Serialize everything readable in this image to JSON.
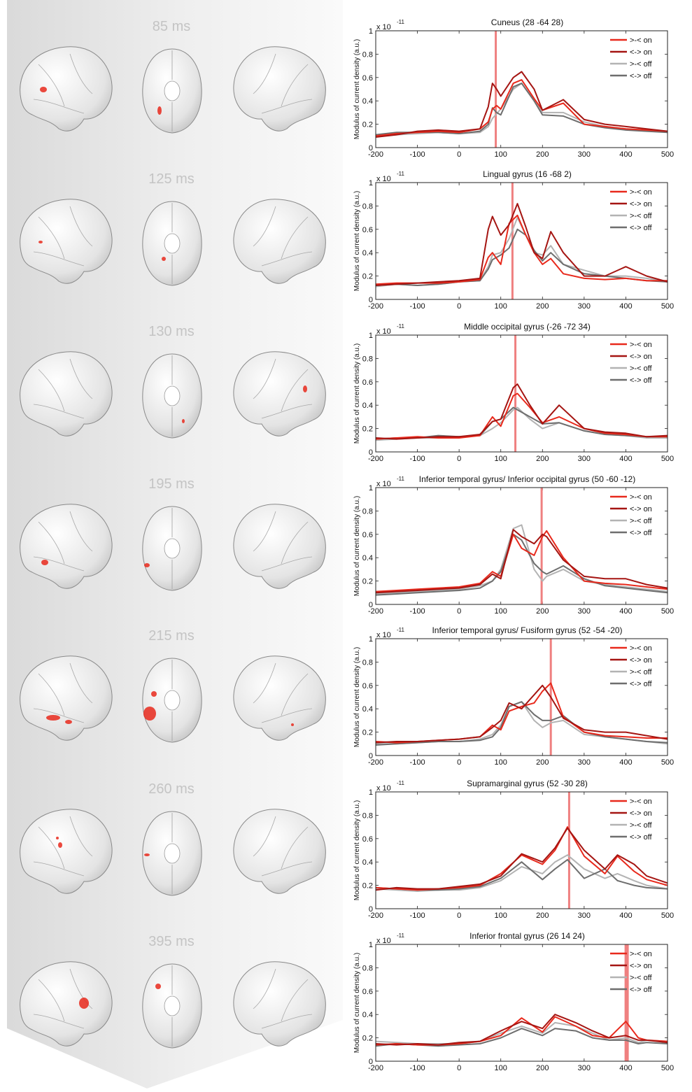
{
  "latencies": [
    "85 ms",
    "125 ms",
    "130 ms",
    "195 ms",
    "215 ms",
    "260 ms",
    "395 ms"
  ],
  "shared": {
    "ylabel": "Modulus of current density (a.u.)",
    "scale_label": "x 10",
    "scale_exponent": "-11",
    "xticks": [
      -200,
      -100,
      0,
      100,
      200,
      300,
      400,
      500
    ],
    "yticks": [
      0,
      0.2,
      0.4,
      0.6,
      0.8,
      1
    ],
    "xlim": [
      -200,
      500
    ],
    "ylim": [
      0,
      1
    ],
    "legend_labels": [
      ">-< on",
      "<-> on",
      ">-< off",
      "<-> off"
    ],
    "colors": [
      "#e8291c",
      "#a51512",
      "#b3b3b3",
      "#6e6e6e"
    ],
    "marker_color": "#ef8080"
  },
  "chart_data": [
    {
      "type": "line",
      "title": "Cuneus (28 -64 28)",
      "marker": 88,
      "x": [
        -200,
        -150,
        -100,
        -50,
        0,
        50,
        70,
        80,
        90,
        100,
        130,
        150,
        180,
        200,
        250,
        300,
        350,
        400,
        450,
        500
      ],
      "series": [
        {
          "name": ">-< on",
          "values": [
            0.1,
            0.12,
            0.13,
            0.14,
            0.13,
            0.16,
            0.22,
            0.33,
            0.36,
            0.33,
            0.55,
            0.58,
            0.42,
            0.32,
            0.38,
            0.2,
            0.18,
            0.16,
            0.15,
            0.14
          ]
        },
        {
          "name": "<-> on",
          "values": [
            0.09,
            0.11,
            0.14,
            0.15,
            0.14,
            0.16,
            0.35,
            0.55,
            0.5,
            0.44,
            0.6,
            0.65,
            0.5,
            0.32,
            0.41,
            0.24,
            0.2,
            0.18,
            0.16,
            0.14
          ]
        },
        {
          "name": ">-< off",
          "values": [
            0.1,
            0.11,
            0.12,
            0.13,
            0.12,
            0.13,
            0.18,
            0.25,
            0.29,
            0.33,
            0.5,
            0.55,
            0.4,
            0.3,
            0.3,
            0.22,
            0.18,
            0.16,
            0.15,
            0.13
          ]
        },
        {
          "name": "<-> off",
          "values": [
            0.11,
            0.13,
            0.13,
            0.13,
            0.12,
            0.14,
            0.2,
            0.34,
            0.3,
            0.28,
            0.52,
            0.55,
            0.4,
            0.28,
            0.27,
            0.2,
            0.17,
            0.15,
            0.14,
            0.13
          ]
        }
      ]
    },
    {
      "type": "line",
      "title": "Lingual gyrus (16 -68  2)",
      "marker": 128,
      "x": [
        -200,
        -150,
        -100,
        -50,
        0,
        50,
        70,
        80,
        100,
        120,
        140,
        160,
        180,
        200,
        220,
        250,
        300,
        350,
        400,
        450,
        500
      ],
      "series": [
        {
          "name": ">-< on",
          "values": [
            0.13,
            0.14,
            0.14,
            0.14,
            0.15,
            0.17,
            0.36,
            0.4,
            0.3,
            0.65,
            0.72,
            0.55,
            0.4,
            0.3,
            0.35,
            0.22,
            0.18,
            0.17,
            0.18,
            0.16,
            0.16
          ]
        },
        {
          "name": "<-> on",
          "values": [
            0.12,
            0.13,
            0.14,
            0.15,
            0.16,
            0.18,
            0.6,
            0.71,
            0.55,
            0.64,
            0.82,
            0.62,
            0.4,
            0.35,
            0.58,
            0.4,
            0.2,
            0.2,
            0.28,
            0.2,
            0.15
          ]
        },
        {
          "name": ">-< off",
          "values": [
            0.11,
            0.13,
            0.12,
            0.13,
            0.15,
            0.16,
            0.28,
            0.38,
            0.4,
            0.52,
            0.7,
            0.55,
            0.4,
            0.38,
            0.46,
            0.3,
            0.25,
            0.2,
            0.2,
            0.18,
            0.15
          ]
        },
        {
          "name": "<-> off",
          "values": [
            0.12,
            0.13,
            0.12,
            0.13,
            0.15,
            0.16,
            0.26,
            0.34,
            0.38,
            0.44,
            0.6,
            0.55,
            0.42,
            0.33,
            0.4,
            0.3,
            0.22,
            0.2,
            0.18,
            0.16,
            0.15
          ]
        }
      ]
    },
    {
      "type": "line",
      "title": "Middle occipital gyrus (-26 -72  34)",
      "marker": 135,
      "x": [
        -200,
        -150,
        -100,
        -50,
        0,
        50,
        80,
        100,
        130,
        140,
        170,
        200,
        240,
        300,
        350,
        400,
        450,
        500
      ],
      "series": [
        {
          "name": ">-< on",
          "values": [
            0.11,
            0.12,
            0.13,
            0.12,
            0.12,
            0.14,
            0.3,
            0.22,
            0.48,
            0.5,
            0.38,
            0.25,
            0.3,
            0.2,
            0.16,
            0.15,
            0.13,
            0.13
          ]
        },
        {
          "name": "<-> on",
          "values": [
            0.12,
            0.11,
            0.12,
            0.13,
            0.13,
            0.15,
            0.26,
            0.28,
            0.55,
            0.58,
            0.4,
            0.24,
            0.4,
            0.2,
            0.17,
            0.16,
            0.13,
            0.14
          ]
        },
        {
          "name": ">-< off",
          "values": [
            0.1,
            0.11,
            0.12,
            0.12,
            0.13,
            0.14,
            0.2,
            0.25,
            0.36,
            0.38,
            0.28,
            0.2,
            0.25,
            0.18,
            0.15,
            0.14,
            0.12,
            0.12
          ]
        },
        {
          "name": "<-> off",
          "values": [
            0.11,
            0.12,
            0.12,
            0.14,
            0.13,
            0.14,
            0.26,
            0.28,
            0.38,
            0.36,
            0.3,
            0.24,
            0.25,
            0.18,
            0.15,
            0.14,
            0.13,
            0.13
          ]
        }
      ]
    },
    {
      "type": "line",
      "title": "Inferior temporal gyrus/ Inferior occipital gyrus (50 -60 -12)",
      "marker": 198,
      "x": [
        -200,
        -150,
        -100,
        -50,
        0,
        50,
        80,
        100,
        130,
        150,
        180,
        200,
        210,
        250,
        300,
        350,
        400,
        450,
        500
      ],
      "series": [
        {
          "name": ">-< on",
          "values": [
            0.11,
            0.12,
            0.13,
            0.14,
            0.15,
            0.18,
            0.28,
            0.24,
            0.6,
            0.48,
            0.42,
            0.58,
            0.63,
            0.4,
            0.2,
            0.18,
            0.17,
            0.15,
            0.13
          ]
        },
        {
          "name": "<-> on",
          "values": [
            0.1,
            0.11,
            0.12,
            0.13,
            0.14,
            0.17,
            0.26,
            0.22,
            0.64,
            0.58,
            0.52,
            0.6,
            0.58,
            0.38,
            0.24,
            0.22,
            0.22,
            0.17,
            0.14
          ]
        },
        {
          "name": ">-< off",
          "values": [
            0.09,
            0.1,
            0.11,
            0.12,
            0.13,
            0.16,
            0.2,
            0.3,
            0.65,
            0.68,
            0.3,
            0.2,
            0.24,
            0.3,
            0.2,
            0.17,
            0.15,
            0.13,
            0.11
          ]
        },
        {
          "name": "<-> off",
          "values": [
            0.08,
            0.09,
            0.1,
            0.11,
            0.12,
            0.14,
            0.2,
            0.28,
            0.6,
            0.55,
            0.35,
            0.28,
            0.26,
            0.33,
            0.22,
            0.16,
            0.14,
            0.12,
            0.1
          ]
        }
      ]
    },
    {
      "type": "line",
      "title": "Inferior temporal gyrus/ Fusiform gyrus (52 -54 -20)",
      "marker": 220,
      "x": [
        -200,
        -150,
        -100,
        -50,
        0,
        50,
        80,
        100,
        120,
        150,
        180,
        200,
        220,
        250,
        300,
        350,
        400,
        450,
        500
      ],
      "series": [
        {
          "name": ">-< on",
          "values": [
            0.12,
            0.11,
            0.12,
            0.13,
            0.14,
            0.16,
            0.26,
            0.22,
            0.38,
            0.42,
            0.45,
            0.55,
            0.62,
            0.33,
            0.2,
            0.17,
            0.16,
            0.15,
            0.15
          ]
        },
        {
          "name": "<-> on",
          "values": [
            0.11,
            0.12,
            0.12,
            0.13,
            0.14,
            0.16,
            0.24,
            0.3,
            0.45,
            0.4,
            0.52,
            0.6,
            0.5,
            0.32,
            0.22,
            0.2,
            0.2,
            0.17,
            0.14
          ]
        },
        {
          "name": ">-< off",
          "values": [
            0.1,
            0.1,
            0.11,
            0.12,
            0.12,
            0.14,
            0.18,
            0.26,
            0.42,
            0.46,
            0.3,
            0.24,
            0.28,
            0.3,
            0.18,
            0.16,
            0.14,
            0.12,
            0.1
          ]
        },
        {
          "name": "<-> off",
          "values": [
            0.09,
            0.1,
            0.11,
            0.12,
            0.12,
            0.13,
            0.16,
            0.24,
            0.42,
            0.46,
            0.35,
            0.3,
            0.3,
            0.34,
            0.2,
            0.16,
            0.14,
            0.12,
            0.11
          ]
        }
      ]
    },
    {
      "type": "line",
      "title": "Supramarginal gyrus (52 -30  28)",
      "marker": 264,
      "x": [
        -200,
        -150,
        -100,
        -50,
        0,
        50,
        100,
        150,
        200,
        230,
        260,
        300,
        350,
        380,
        420,
        450,
        500
      ],
      "series": [
        {
          "name": ">-< on",
          "values": [
            0.18,
            0.17,
            0.16,
            0.17,
            0.18,
            0.2,
            0.3,
            0.46,
            0.38,
            0.5,
            0.7,
            0.45,
            0.3,
            0.45,
            0.32,
            0.25,
            0.2
          ]
        },
        {
          "name": "<-> on",
          "values": [
            0.16,
            0.18,
            0.17,
            0.17,
            0.19,
            0.21,
            0.28,
            0.47,
            0.4,
            0.52,
            0.69,
            0.5,
            0.34,
            0.46,
            0.38,
            0.28,
            0.22
          ]
        },
        {
          "name": ">-< off",
          "values": [
            0.17,
            0.16,
            0.15,
            0.16,
            0.16,
            0.18,
            0.24,
            0.36,
            0.3,
            0.4,
            0.46,
            0.34,
            0.26,
            0.3,
            0.24,
            0.2,
            0.17
          ]
        },
        {
          "name": "<-> off",
          "values": [
            0.18,
            0.17,
            0.16,
            0.16,
            0.17,
            0.19,
            0.26,
            0.4,
            0.25,
            0.34,
            0.42,
            0.26,
            0.34,
            0.24,
            0.2,
            0.18,
            0.17
          ]
        }
      ]
    },
    {
      "type": "line",
      "title": "Inferior frontal gyrus (26  14  24)",
      "marker": 402,
      "x": [
        -200,
        -150,
        -100,
        -50,
        0,
        50,
        100,
        150,
        200,
        230,
        280,
        320,
        360,
        400,
        430,
        450,
        500
      ],
      "series": [
        {
          "name": ">-< on",
          "values": [
            0.14,
            0.15,
            0.14,
            0.14,
            0.15,
            0.17,
            0.22,
            0.37,
            0.25,
            0.38,
            0.3,
            0.22,
            0.2,
            0.34,
            0.2,
            0.18,
            0.17
          ]
        },
        {
          "name": "<-> on",
          "values": [
            0.15,
            0.14,
            0.15,
            0.14,
            0.16,
            0.17,
            0.26,
            0.34,
            0.28,
            0.4,
            0.33,
            0.26,
            0.2,
            0.22,
            0.18,
            0.18,
            0.16
          ]
        },
        {
          "name": ">-< off",
          "values": [
            0.17,
            0.16,
            0.15,
            0.15,
            0.15,
            0.17,
            0.24,
            0.3,
            0.24,
            0.33,
            0.3,
            0.24,
            0.18,
            0.2,
            0.16,
            0.18,
            0.17
          ]
        },
        {
          "name": "<-> off",
          "values": [
            0.13,
            0.15,
            0.14,
            0.13,
            0.14,
            0.15,
            0.2,
            0.28,
            0.22,
            0.28,
            0.26,
            0.2,
            0.18,
            0.18,
            0.15,
            0.16,
            0.15
          ]
        }
      ]
    }
  ]
}
